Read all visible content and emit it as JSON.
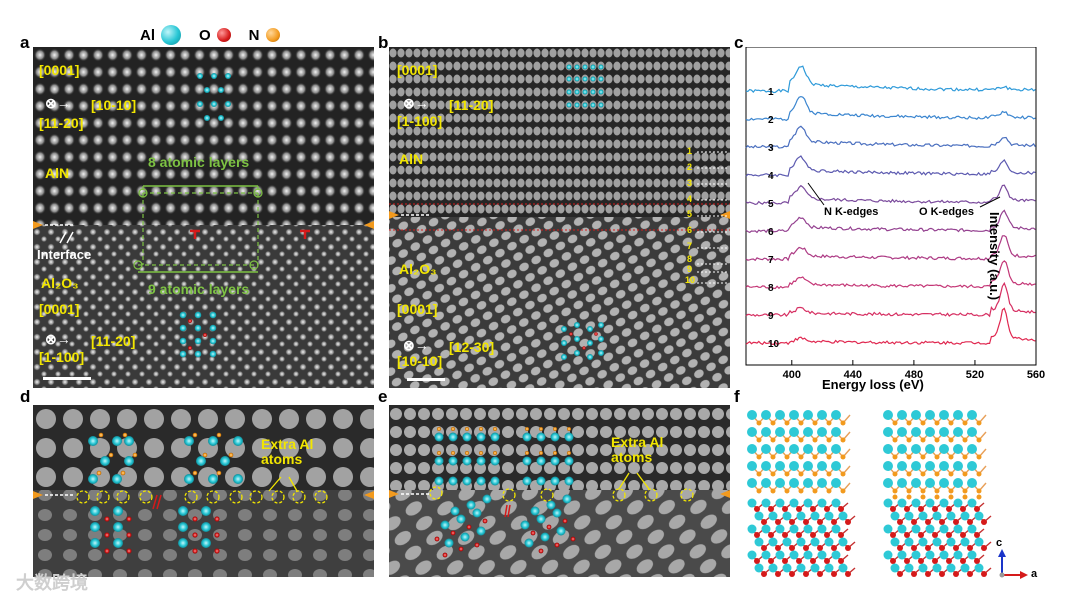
{
  "legend": {
    "al": "Al",
    "o": "O",
    "n": "N"
  },
  "colors": {
    "al": "#27c6d4",
    "o": "#d51a1a",
    "n": "#f29a1e",
    "yellow": "#f2e600",
    "green": "#7dc243"
  },
  "panel_labels": [
    "a",
    "b",
    "c",
    "d",
    "e",
    "f"
  ],
  "panel_a": {
    "top_dir": "[0001]",
    "top_right": "[10-10]",
    "top_sub": "[11-20]",
    "layer_label": "AlN",
    "layers_top": "8 atomic layers",
    "interface": "Interface",
    "sub_label": "Al₂O₃",
    "layers_bottom": "9 atomic layers",
    "bot_dir": "[0001]",
    "bot_right": "[11-20]",
    "bot_sub": "[1-100]"
  },
  "panel_b": {
    "top_dir": "[0001]",
    "top_right": "[11-20]",
    "top_sub": "[1-100]",
    "layer_label": "AlN",
    "sub_label": "Al₂O₃",
    "bot_dir": "[0001]",
    "bot_right": "[12-30]",
    "bot_sub": "[10-10]",
    "markers": [
      "1",
      "2",
      "3",
      "4",
      "5",
      "6",
      "7",
      "8",
      "9",
      "10"
    ]
  },
  "panel_d": {
    "extra": "Extra Al\natoms"
  },
  "panel_e": {
    "extra": "Extra Al\natoms"
  },
  "panel_f": {
    "axis_c": "c",
    "axis_a": "a"
  },
  "chart_data": {
    "type": "line",
    "title": "",
    "xlabel": "Energy loss (eV)",
    "ylabel": "Intensity (a.u.)",
    "xlim": [
      370,
      560
    ],
    "xticks": [
      400,
      440,
      480,
      520,
      560
    ],
    "series_labels": [
      "1",
      "2",
      "3",
      "4",
      "5",
      "6",
      "7",
      "8",
      "9",
      "10"
    ],
    "series_colors": [
      "#2e9ad9",
      "#3a85cf",
      "#4a6fbf",
      "#5c5ab0",
      "#7a4a9c",
      "#944190",
      "#ad3a84",
      "#c43676",
      "#d62f62",
      "#e02850"
    ],
    "annotations": [
      "N K-edges",
      "O K-edges"
    ]
  },
  "watermark": "大数跨境"
}
